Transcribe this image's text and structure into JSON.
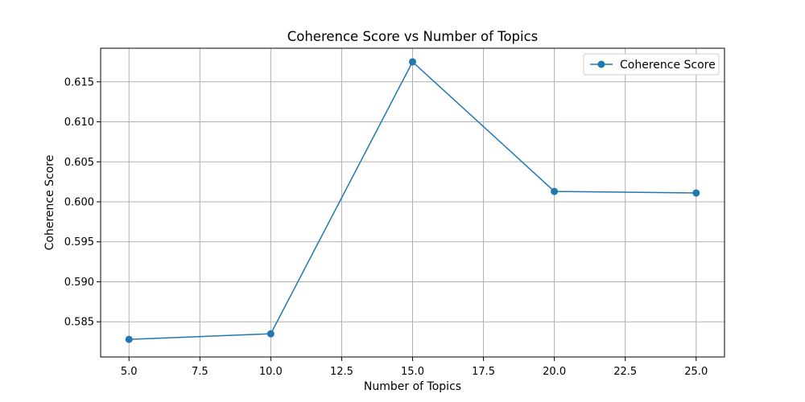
{
  "chart_data": {
    "type": "line",
    "title": "Coherence Score vs Number of Topics",
    "xlabel": "Number of Topics",
    "ylabel": "Coherence Score",
    "xlim": [
      4.0,
      26.0
    ],
    "ylim": [
      0.5806,
      0.6192
    ],
    "xticks": [
      5.0,
      7.5,
      10.0,
      12.5,
      15.0,
      17.5,
      20.0,
      22.5,
      25.0
    ],
    "xtick_labels": [
      "5.0",
      "7.5",
      "10.0",
      "12.5",
      "15.0",
      "17.5",
      "20.0",
      "22.5",
      "25.0"
    ],
    "yticks": [
      0.585,
      0.59,
      0.595,
      0.6,
      0.605,
      0.61,
      0.615
    ],
    "ytick_labels": [
      "0.585",
      "0.590",
      "0.595",
      "0.600",
      "0.605",
      "0.610",
      "0.615"
    ],
    "grid": true,
    "legend_position": "top-right",
    "series": [
      {
        "name": "Coherence Score",
        "color": "#1f77b4",
        "marker": "circle",
        "x": [
          5,
          10,
          15,
          20,
          25
        ],
        "y": [
          0.5828,
          0.5835,
          0.6175,
          0.6013,
          0.6011
        ]
      }
    ]
  }
}
